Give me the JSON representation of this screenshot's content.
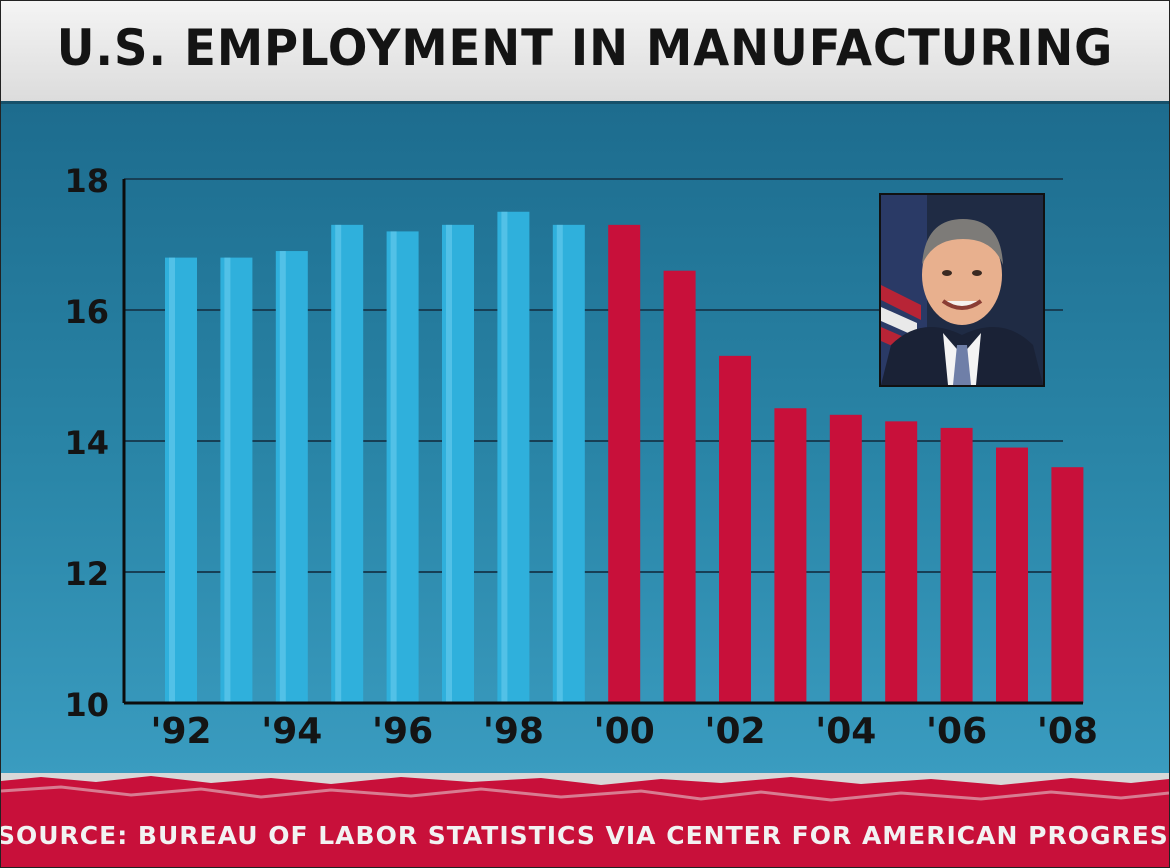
{
  "chart_data": {
    "type": "bar",
    "title": "U.S. EMPLOYMENT IN MANUFACTURING",
    "xlabel": "",
    "ylabel": "",
    "ylim": [
      10,
      18
    ],
    "yticks": [
      "10",
      "12",
      "14",
      "16",
      "18"
    ],
    "xtick_labels": [
      "'92",
      "'94",
      "'96",
      "'98",
      "'00",
      "'02",
      "'04",
      "'06",
      "'08"
    ],
    "categories": [
      "1992",
      "1993",
      "1994",
      "1995",
      "1996",
      "1997",
      "1998",
      "1999",
      "2000",
      "2001",
      "2002",
      "2003",
      "2004",
      "2005",
      "2006",
      "2007",
      "2008"
    ],
    "values": [
      16.8,
      16.8,
      16.9,
      17.3,
      17.2,
      17.3,
      17.5,
      17.3,
      17.3,
      16.6,
      15.3,
      14.5,
      14.4,
      14.3,
      14.2,
      13.9,
      13.6
    ],
    "bar_colors": [
      "#2fb0dc",
      "#2fb0dc",
      "#2fb0dc",
      "#2fb0dc",
      "#2fb0dc",
      "#2fb0dc",
      "#2fb0dc",
      "#2fb0dc",
      "#c8103a",
      "#c8103a",
      "#c8103a",
      "#c8103a",
      "#c8103a",
      "#c8103a",
      "#c8103a",
      "#c8103a",
      "#c8103a"
    ],
    "grid": true,
    "legend": "none"
  },
  "source": "SOURCE: BUREAU OF LABOR STATISTICS VIA CENTER FOR AMERICAN PROGRESS",
  "image": {
    "portrait": "presidential-portrait"
  },
  "colors": {
    "panel": "#2a86a8",
    "blue_bar": "#2fb0dc",
    "red_bar": "#c8103a",
    "title_text": "#141414"
  }
}
